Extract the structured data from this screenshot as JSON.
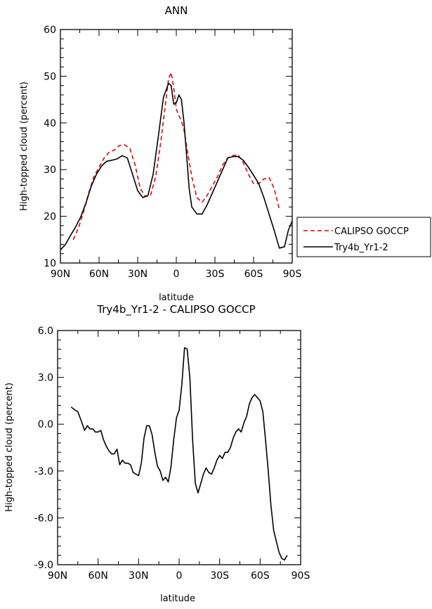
{
  "chart_data": [
    {
      "type": "line",
      "title": "ANN",
      "xlabel": "latitude",
      "ylabel": "High-topped cloud (percent)",
      "xlim": [
        90,
        -90
      ],
      "ylim": [
        10,
        60
      ],
      "x_ticks": [
        90,
        60,
        30,
        0,
        -30,
        -60,
        -90
      ],
      "x_tick_labels": [
        "90N",
        "60N",
        "30N",
        "0",
        "30S",
        "60S",
        "90S"
      ],
      "y_ticks": [
        10,
        20,
        30,
        40,
        50,
        60
      ],
      "y_tick_labels": [
        "10",
        "20",
        "30",
        "40",
        "50",
        "60"
      ],
      "legend_position": "right",
      "series": [
        {
          "name": "CALIPSO GOCCP",
          "color": "#e8000b",
          "dash": "dashed",
          "x": [
            80,
            76,
            72,
            68,
            64,
            60,
            56,
            52,
            48,
            44,
            40,
            36,
            32,
            28,
            24,
            20,
            16,
            12,
            8,
            6,
            4,
            2,
            0,
            -2,
            -4,
            -6,
            -8,
            -12,
            -16,
            -20,
            -24,
            -28,
            -32,
            -36,
            -40,
            -44,
            -48,
            -52,
            -56,
            -60,
            -64,
            -68,
            -72,
            -76,
            -80
          ],
          "y": [
            15.0,
            17.5,
            21.0,
            25.0,
            28.5,
            30.5,
            32.5,
            33.8,
            34.2,
            35.2,
            35.3,
            34.5,
            31.0,
            26.0,
            24.2,
            24.5,
            28.5,
            36.0,
            45.0,
            49.5,
            50.8,
            47.5,
            43.0,
            41.5,
            40.5,
            38.5,
            35.0,
            28.5,
            24.0,
            23.0,
            24.5,
            26.5,
            28.5,
            31.0,
            32.5,
            33.0,
            33.2,
            31.5,
            29.0,
            27.0,
            27.0,
            28.0,
            28.3,
            26.0,
            21.5
          ]
        },
        {
          "name": "Try4b_Yr1-2",
          "color": "#000000",
          "dash": "solid",
          "x": [
            90,
            86,
            82,
            78,
            74,
            70,
            66,
            62,
            58,
            54,
            50,
            46,
            42,
            38,
            34,
            30,
            26,
            22,
            18,
            14,
            10,
            6,
            4,
            2,
            0,
            -2,
            -4,
            -6,
            -8,
            -10,
            -12,
            -16,
            -20,
            -24,
            -28,
            -32,
            -36,
            -40,
            -44,
            -48,
            -52,
            -56,
            -60,
            -64,
            -68,
            -72,
            -76,
            -80,
            -84,
            -87,
            -90
          ],
          "y": [
            12.8,
            14.0,
            16.0,
            17.8,
            20.0,
            23.0,
            26.5,
            29.0,
            30.8,
            31.8,
            32.0,
            32.3,
            33.0,
            32.5,
            29.0,
            25.5,
            24.0,
            24.5,
            29.0,
            37.0,
            45.5,
            48.5,
            48.0,
            44.0,
            44.3,
            46.0,
            45.0,
            40.0,
            33.0,
            26.0,
            22.0,
            20.5,
            20.5,
            22.5,
            25.0,
            27.5,
            30.0,
            32.5,
            32.8,
            32.8,
            32.0,
            30.5,
            28.8,
            27.0,
            24.0,
            20.5,
            17.0,
            13.2,
            13.5,
            17.0,
            19.0
          ]
        }
      ]
    },
    {
      "type": "line",
      "title": "Try4b_Yr1-2 - CALIPSO GOCCP",
      "xlabel": "latitude",
      "ylabel": "High-topped cloud (percent)",
      "xlim": [
        90,
        -90
      ],
      "ylim": [
        -9.0,
        6.0
      ],
      "x_ticks": [
        90,
        60,
        30,
        0,
        -30,
        -60,
        -90
      ],
      "x_tick_labels": [
        "90N",
        "60N",
        "30N",
        "0",
        "30S",
        "60S",
        "90S"
      ],
      "y_ticks": [
        -9,
        -6,
        -3,
        0,
        3,
        6
      ],
      "y_tick_labels": [
        "-9.0",
        "-6.0",
        "-3.0",
        "0.0",
        "3.0",
        "6.0"
      ],
      "series": [
        {
          "color": "#000000",
          "dash": "solid",
          "x": [
            80,
            77,
            75,
            72,
            70,
            68,
            66,
            64,
            62,
            60,
            58,
            56,
            54,
            52,
            50,
            48,
            46,
            44,
            42,
            40,
            38,
            36,
            34,
            32,
            30,
            28,
            26,
            24,
            22,
            20,
            18,
            16,
            14,
            12,
            10,
            8,
            6,
            4,
            2,
            0,
            -2,
            -4,
            -6,
            -8,
            -10,
            -12,
            -14,
            -16,
            -18,
            -20,
            -22,
            -24,
            -26,
            -28,
            -30,
            -32,
            -34,
            -36,
            -38,
            -40,
            -42,
            -44,
            -46,
            -48,
            -50,
            -52,
            -54,
            -56,
            -58,
            -60,
            -62,
            -64,
            -66,
            -68,
            -70,
            -72,
            -74,
            -76,
            -78,
            -80
          ],
          "y": [
            1.1,
            0.9,
            0.8,
            0.1,
            -0.4,
            -0.1,
            -0.3,
            -0.3,
            -0.5,
            -0.5,
            -0.4,
            -1.0,
            -1.4,
            -1.7,
            -1.9,
            -1.9,
            -1.6,
            -2.6,
            -2.3,
            -2.5,
            -2.5,
            -2.6,
            -3.1,
            -3.2,
            -3.3,
            -2.5,
            -0.9,
            -0.1,
            -0.1,
            -0.7,
            -1.8,
            -2.7,
            -3.0,
            -3.6,
            -3.4,
            -3.7,
            -2.7,
            -1.0,
            0.4,
            0.9,
            2.5,
            4.9,
            4.8,
            2.9,
            -1.0,
            -3.8,
            -4.4,
            -3.8,
            -3.2,
            -2.8,
            -3.1,
            -3.2,
            -2.8,
            -2.3,
            -2.0,
            -2.2,
            -1.8,
            -1.8,
            -1.5,
            -0.9,
            -0.5,
            -0.3,
            -0.5,
            0.1,
            0.5,
            1.3,
            1.7,
            1.9,
            1.7,
            1.5,
            0.8,
            -1.0,
            -3.0,
            -5.2,
            -6.8,
            -7.5,
            -8.2,
            -8.6,
            -8.7,
            -8.4
          ]
        }
      ]
    }
  ]
}
